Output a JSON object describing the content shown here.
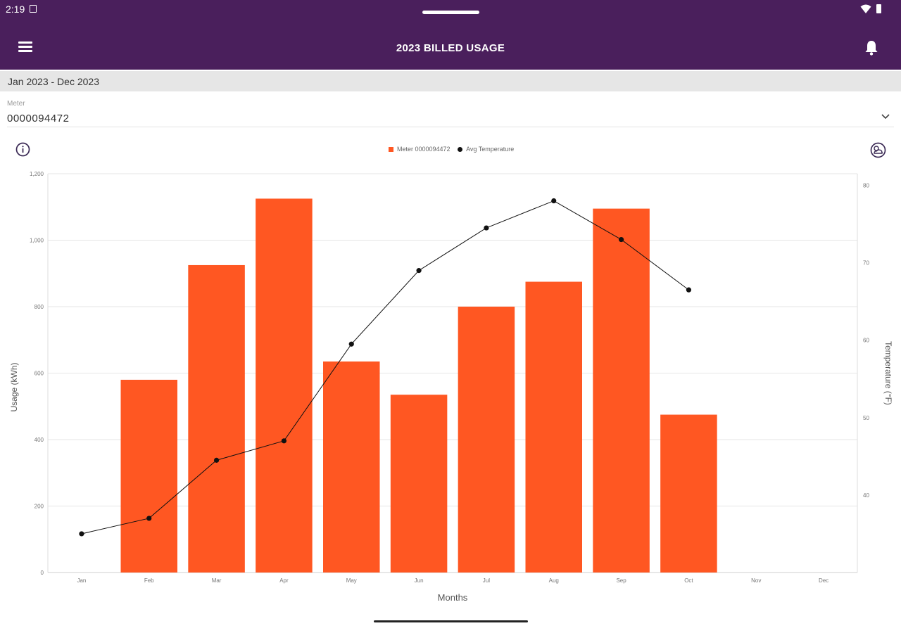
{
  "status_bar": {
    "time": "2:19"
  },
  "app_bar": {
    "title": "2023 BILLED USAGE"
  },
  "date_range": "Jan 2023 - Dec 2023",
  "meter": {
    "label": "Meter",
    "value": "0000094472"
  },
  "colors": {
    "header": "#4a1f5c",
    "bar": "#ff5722",
    "line": "#111111",
    "grid": "#e6e6e6"
  },
  "chart_data": {
    "type": "bar",
    "categories": [
      "Jan",
      "Feb",
      "Mar",
      "Apr",
      "May",
      "Jun",
      "Jul",
      "Aug",
      "Sep",
      "Oct",
      "Nov",
      "Dec"
    ],
    "series": [
      {
        "name": "Meter 0000094472",
        "type": "bar",
        "axis": "left",
        "values": [
          0,
          580,
          925,
          1125,
          635,
          535,
          800,
          875,
          1095,
          475,
          null,
          null
        ]
      },
      {
        "name": "Avg Temperature",
        "type": "line",
        "axis": "right",
        "values": [
          35,
          37,
          44.5,
          47,
          59.5,
          69,
          74.5,
          78,
          73,
          66.5,
          null,
          null
        ]
      }
    ],
    "xlabel": "Months",
    "ylabel": "Usage (kWh)",
    "y2label": "Temperature (°F)",
    "ylim": [
      0,
      1200
    ],
    "yticks": [
      0,
      200,
      400,
      600,
      800,
      1000,
      1200
    ],
    "ytick_labels": [
      "0",
      "200",
      "400",
      "600",
      "800",
      "1,000",
      "1,200"
    ],
    "y2lim": [
      30,
      81.5
    ],
    "y2ticks": [
      40,
      50,
      60,
      70,
      80
    ],
    "legend": "top-center",
    "grid": true
  }
}
